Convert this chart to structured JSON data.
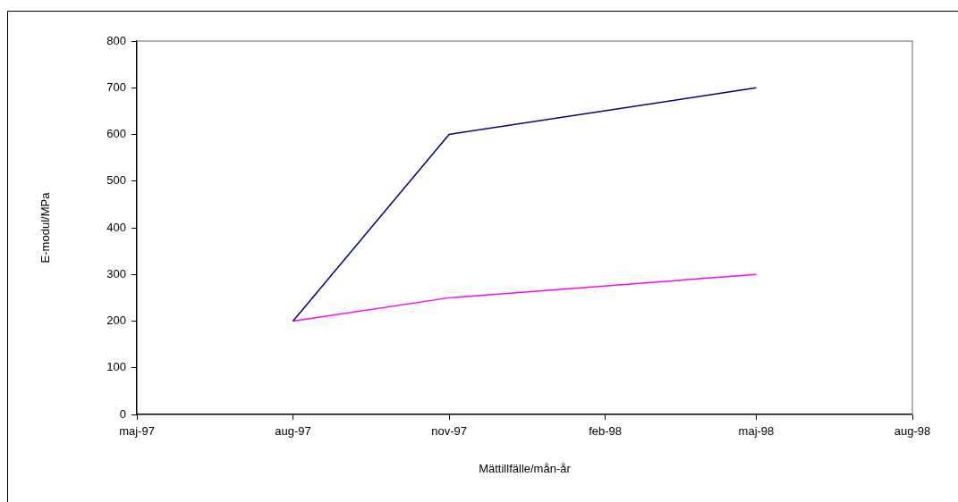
{
  "chart_data": {
    "type": "line",
    "xlabel": "Mättillfälle/mån-år",
    "ylabel": "E-modul/MPa",
    "x": [
      "1997-08",
      "1997-11",
      "1998-05"
    ],
    "series": [
      {
        "color": "#000080",
        "values": [
          200,
          600,
          700
        ]
      },
      {
        "color": "#ff00ff",
        "values": [
          200,
          250,
          300
        ]
      }
    ],
    "xlim": [
      "1997-05",
      "1998-08"
    ],
    "xticks": [
      {
        "value": "1997-05",
        "label": "maj-97"
      },
      {
        "value": "1997-08",
        "label": "aug-97"
      },
      {
        "value": "1997-11",
        "label": "nov-97"
      },
      {
        "value": "1998-02",
        "label": "feb-98"
      },
      {
        "value": "1998-05",
        "label": "maj-98"
      },
      {
        "value": "1998-08",
        "label": "aug-98"
      }
    ],
    "ylim": [
      0,
      800
    ],
    "yticks": [
      0,
      100,
      200,
      300,
      400,
      500,
      600,
      700,
      800
    ],
    "grid": false,
    "legend": false,
    "marker": "none",
    "line_style": "solid"
  }
}
